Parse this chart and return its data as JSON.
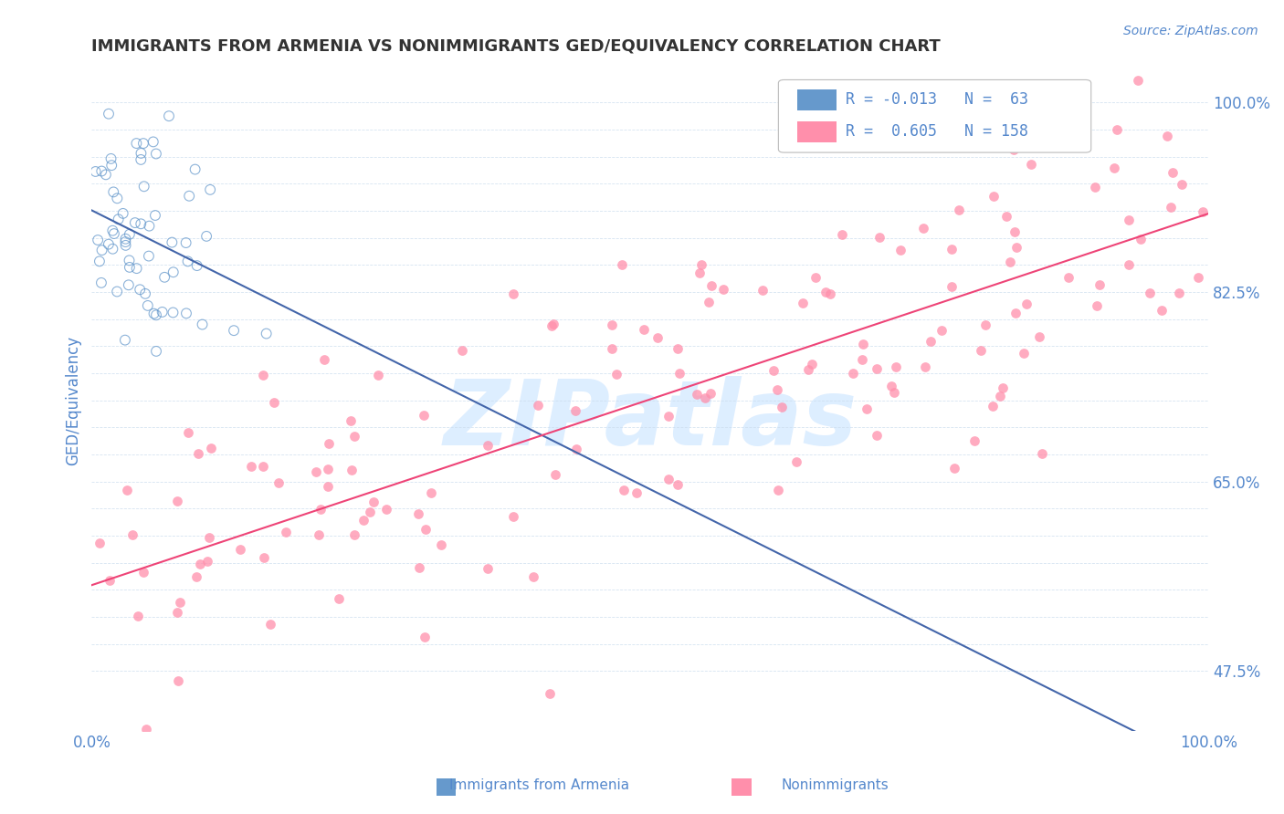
{
  "title": "IMMIGRANTS FROM ARMENIA VS NONIMMIGRANTS GED/EQUIVALENCY CORRELATION CHART",
  "source_text": "Source: ZipAtlas.com",
  "ylabel": "GED/Equivalency",
  "legend_label1": "Immigrants from Armenia",
  "legend_label2": "Nonimmigrants",
  "r1": -0.013,
  "n1": 63,
  "r2": 0.605,
  "n2": 158,
  "xlim": [
    0.0,
    1.0
  ],
  "ylim": [
    0.42,
    1.03
  ],
  "yticks": [
    0.475,
    0.5,
    0.525,
    0.55,
    0.575,
    0.6,
    0.625,
    0.65,
    0.675,
    0.7,
    0.725,
    0.75,
    0.775,
    0.8,
    0.825,
    0.85,
    0.875,
    0.9,
    0.925,
    0.95,
    0.975,
    1.0
  ],
  "ytick_labels_show": [
    0.475,
    0.65,
    0.825,
    1.0
  ],
  "xticks": [
    0.0,
    0.25,
    0.5,
    0.75,
    1.0
  ],
  "xtick_labels_show": [
    0.0,
    1.0
  ],
  "color_blue": "#6699CC",
  "color_pink": "#FF8FAB",
  "color_trend_blue": "#4466AA",
  "color_trend_pink": "#EE4477",
  "color_axis_text": "#5588CC",
  "color_grid": "#CCDDEE",
  "color_title": "#333333",
  "background_color": "#FFFFFF",
  "watermark_text": "ZIPatlas",
  "watermark_color": "#DDEEFF",
  "seed_blue": 42,
  "seed_pink": 99
}
